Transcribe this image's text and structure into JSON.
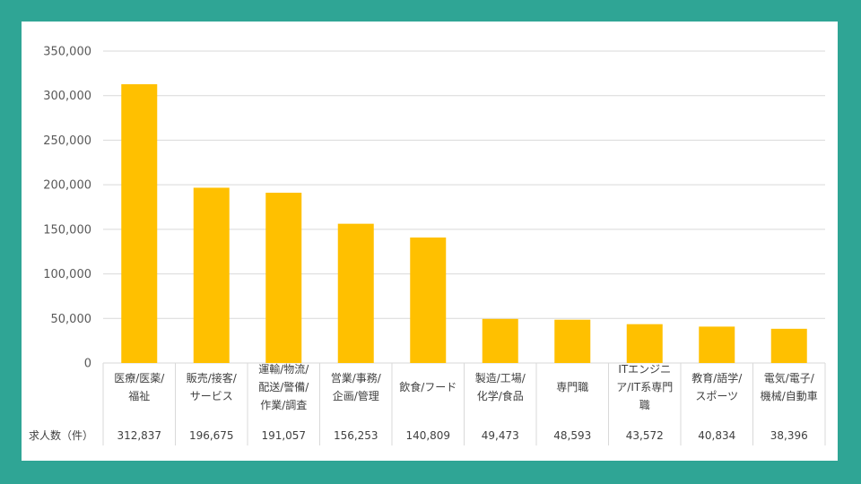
{
  "colors": {
    "background": "#2fa595",
    "card": "#ffffff",
    "bar": "#ffc000",
    "grid": "#d9d9d9",
    "text": "#404040"
  },
  "chart_data": {
    "type": "bar",
    "title": "",
    "xlabel": "",
    "ylabel": "",
    "ylim": [
      0,
      350000
    ],
    "yticks": [
      0,
      50000,
      100000,
      150000,
      200000,
      250000,
      300000,
      350000
    ],
    "ytick_labels": [
      "0",
      "50,000",
      "100,000",
      "150,000",
      "200,000",
      "250,000",
      "300,000",
      "350,000"
    ],
    "grid": true,
    "legend": "none",
    "categories": [
      [
        "医療/医薬/",
        "福祉"
      ],
      [
        "販売/接客/",
        "サービス"
      ],
      [
        "運輸/物流/",
        "配送/警備/",
        "作業/調査"
      ],
      [
        "営業/事務/",
        "企画/管理"
      ],
      [
        "飲食/フード"
      ],
      [
        "製造/工場/",
        "化学/食品"
      ],
      [
        "専門職"
      ],
      [
        "ITエンジニ",
        "ア/IT系専門",
        "職"
      ],
      [
        "教育/語学/",
        "スポーツ"
      ],
      [
        "電気/電子/",
        "機械/自動車"
      ]
    ],
    "values": [
      312837,
      196675,
      191057,
      156253,
      140809,
      49473,
      48593,
      43572,
      40834,
      38396
    ],
    "table_row_label": "求人数（件）",
    "value_labels": [
      "312,837",
      "196,675",
      "191,057",
      "156,253",
      "140,809",
      "49,473",
      "48,593",
      "43,572",
      "40,834",
      "38,396"
    ]
  }
}
